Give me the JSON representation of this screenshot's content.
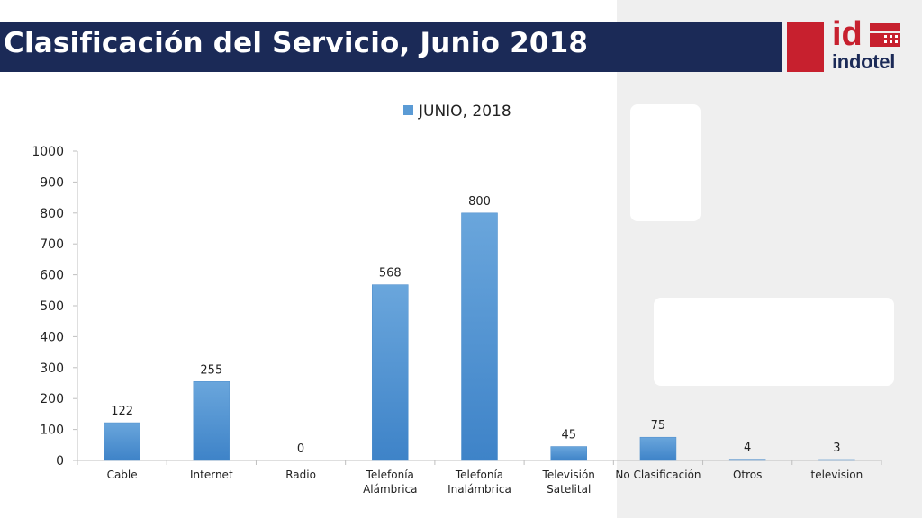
{
  "header": {
    "title": "Clasificación del Servicio, Junio 2018"
  },
  "logo": {
    "mark": "id",
    "wordmark": "indotel",
    "colors": {
      "red": "#c7202e",
      "navy": "#1b2a57"
    }
  },
  "chart_data": {
    "type": "bar",
    "legend": {
      "position": "top",
      "entries": [
        "JUNIO, 2018"
      ]
    },
    "categories": [
      [
        "Cable"
      ],
      [
        "Internet"
      ],
      [
        "Radio"
      ],
      [
        "Telefonía",
        "Alámbrica"
      ],
      [
        "Telefonía",
        "Inalámbrica"
      ],
      [
        "Televisión",
        "Satelital"
      ],
      [
        "No Clasificación"
      ],
      [
        "Otros"
      ],
      [
        "television"
      ]
    ],
    "series": [
      {
        "name": "JUNIO, 2018",
        "values": [
          122,
          255,
          0,
          568,
          800,
          45,
          75,
          4,
          3
        ],
        "color": "#5b9bd5"
      }
    ],
    "ylim": [
      0,
      1000
    ],
    "yticks": [
      0,
      100,
      200,
      300,
      400,
      500,
      600,
      700,
      800,
      900,
      1000
    ],
    "data_labels": true,
    "grid": false
  }
}
